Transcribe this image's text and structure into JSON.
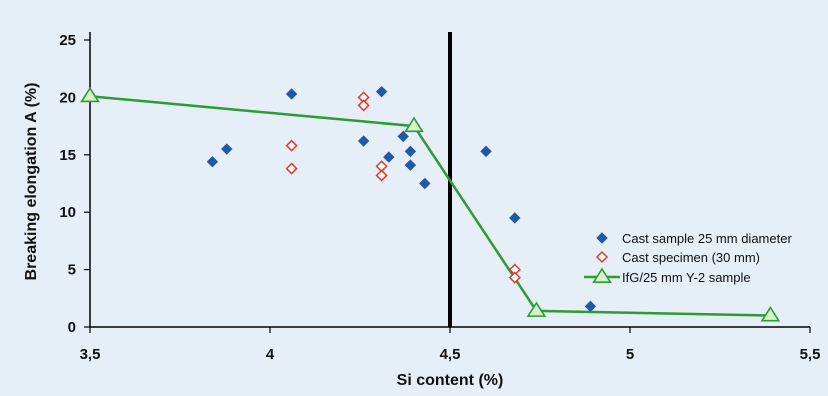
{
  "chart_data": {
    "type": "scatter",
    "xlabel": "Si content (%)",
    "ylabel": "Breaking elongation A (%)",
    "xlim": [
      3.5,
      5.5
    ],
    "ylim": [
      0,
      25
    ],
    "x_ticks": [
      "3,5",
      "4",
      "4,5",
      "5",
      "5,5"
    ],
    "x_tick_values": [
      3.5,
      4.0,
      4.5,
      5.0,
      5.5
    ],
    "y_ticks": [
      "0",
      "5",
      "10",
      "15",
      "20",
      "25"
    ],
    "y_tick_values": [
      0,
      5,
      10,
      15,
      20,
      25
    ],
    "grid": false,
    "legend_position": "right",
    "vertical_line_x": 4.5,
    "colors": {
      "background": "#e6eef8",
      "blue": "#1f5aa6",
      "red": "#e03a2f",
      "green": "#2e9b35",
      "green_fill": "#d6f0c8"
    },
    "series": [
      {
        "name": "Cast sample 25 mm diameter",
        "marker": "diamond-filled",
        "points": [
          [
            3.84,
            14.4
          ],
          [
            3.88,
            15.5
          ],
          [
            4.06,
            20.3
          ],
          [
            4.26,
            16.2
          ],
          [
            4.31,
            20.5
          ],
          [
            4.33,
            14.8
          ],
          [
            4.37,
            16.6
          ],
          [
            4.39,
            15.3
          ],
          [
            4.39,
            14.1
          ],
          [
            4.43,
            12.5
          ],
          [
            4.6,
            15.3
          ],
          [
            4.68,
            9.5
          ],
          [
            4.89,
            1.8
          ]
        ]
      },
      {
        "name": "Cast specimen (30 mm)",
        "marker": "diamond-open",
        "points": [
          [
            4.06,
            15.8
          ],
          [
            4.06,
            13.8
          ],
          [
            4.26,
            20.0
          ],
          [
            4.26,
            19.3
          ],
          [
            4.31,
            14.0
          ],
          [
            4.31,
            13.2
          ],
          [
            4.68,
            5.0
          ],
          [
            4.68,
            4.3
          ]
        ]
      },
      {
        "name": "IfG/25 mm Y-2 sample",
        "marker": "triangle-line",
        "points": [
          [
            3.5,
            20.1
          ],
          [
            4.4,
            17.5
          ],
          [
            4.74,
            1.4
          ],
          [
            5.39,
            1.0
          ]
        ]
      }
    ]
  }
}
